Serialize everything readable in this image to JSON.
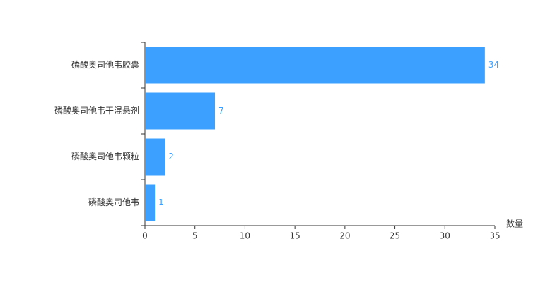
{
  "chart_data": {
    "type": "bar",
    "orientation": "horizontal",
    "categories": [
      "磷酸奥司他韦胶囊",
      "磷酸奥司他韦干混悬剂",
      "磷酸奥司他韦颗粒",
      "磷酸奥司他韦"
    ],
    "values": [
      34,
      7,
      2,
      1
    ],
    "color": "#3ba0ff",
    "x_label": "数量",
    "xlim": [
      0,
      35
    ],
    "xticks": [
      0,
      5,
      10,
      15,
      20,
      25,
      30,
      35
    ],
    "grid": false
  }
}
